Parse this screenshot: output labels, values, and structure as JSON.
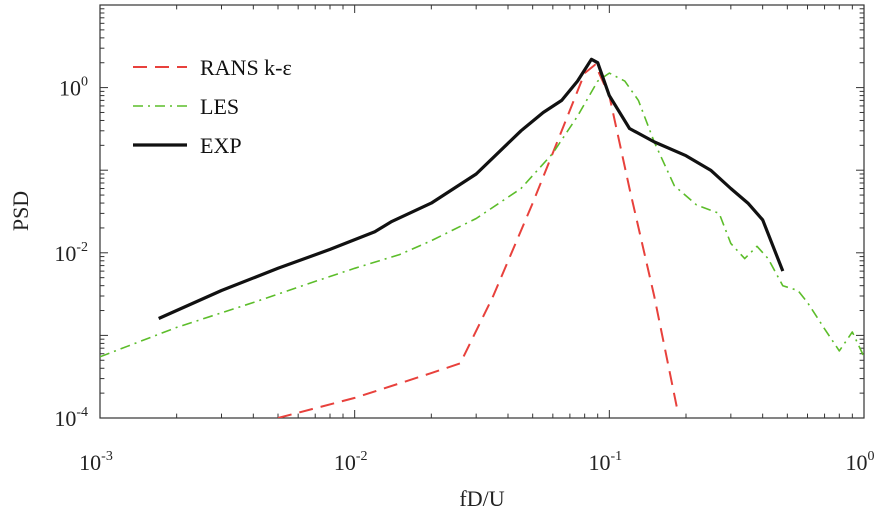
{
  "chart_data": {
    "type": "line",
    "xscale": "log",
    "yscale": "log",
    "xlabel": "fD/U",
    "ylabel": "PSD",
    "xlim": [
      0.001,
      1
    ],
    "ylim": [
      0.0001,
      10
    ],
    "x_ticks": [
      {
        "value": 0.001,
        "base": "10",
        "exp": "-3"
      },
      {
        "value": 0.01,
        "base": "10",
        "exp": "-2"
      },
      {
        "value": 0.1,
        "base": "10",
        "exp": "-1"
      },
      {
        "value": 1,
        "base": "10",
        "exp": "0"
      }
    ],
    "y_ticks": [
      {
        "value": 0.0001,
        "base": "10",
        "exp": "-4"
      },
      {
        "value": 0.01,
        "base": "10",
        "exp": "-2"
      },
      {
        "value": 1,
        "base": "10",
        "exp": "0"
      }
    ],
    "grid": false,
    "legend_position": "top-left",
    "series": [
      {
        "name": "RANS k-ε",
        "color": "#e8413c",
        "style": "dashed",
        "x": [
          0.005,
          0.01,
          0.02,
          0.026,
          0.035,
          0.05,
          0.065,
          0.08,
          0.088,
          0.1,
          0.12,
          0.15,
          0.185
        ],
        "y": [
          0.0001,
          0.000175,
          0.00035,
          0.00046,
          0.003,
          0.04,
          0.3,
          1.5,
          1.9,
          0.8,
          0.06,
          0.003,
          0.000125
        ]
      },
      {
        "name": "LES",
        "color": "#5cbd2a",
        "style": "dashdot",
        "x": [
          0.001,
          0.002,
          0.004,
          0.007,
          0.01,
          0.015,
          0.02,
          0.03,
          0.045,
          0.06,
          0.075,
          0.09,
          0.1,
          0.115,
          0.13,
          0.15,
          0.18,
          0.22,
          0.27,
          0.3,
          0.34,
          0.38,
          0.42,
          0.48,
          0.55,
          0.6,
          0.7,
          0.8,
          0.9,
          1.0
        ],
        "y": [
          0.00055,
          0.00125,
          0.0025,
          0.0045,
          0.0065,
          0.0095,
          0.014,
          0.026,
          0.06,
          0.16,
          0.45,
          1.2,
          1.5,
          1.2,
          0.7,
          0.22,
          0.065,
          0.038,
          0.03,
          0.013,
          0.0085,
          0.012,
          0.0085,
          0.004,
          0.0035,
          0.0025,
          0.0012,
          0.00065,
          0.0011,
          0.00055
        ]
      },
      {
        "name": "EXP",
        "color": "#111111",
        "style": "solid",
        "x": [
          0.0017,
          0.003,
          0.005,
          0.008,
          0.012,
          0.014,
          0.02,
          0.03,
          0.045,
          0.055,
          0.065,
          0.075,
          0.085,
          0.09,
          0.1,
          0.12,
          0.15,
          0.2,
          0.25,
          0.3,
          0.35,
          0.4,
          0.48
        ],
        "y": [
          0.0016,
          0.0035,
          0.0065,
          0.011,
          0.018,
          0.024,
          0.04,
          0.09,
          0.3,
          0.5,
          0.7,
          1.2,
          2.2,
          2.0,
          0.8,
          0.32,
          0.22,
          0.15,
          0.1,
          0.06,
          0.04,
          0.025,
          0.006
        ]
      }
    ]
  }
}
